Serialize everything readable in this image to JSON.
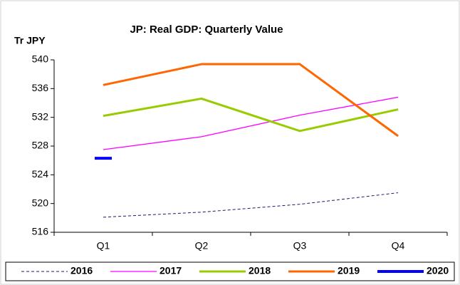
{
  "chart_data": {
    "type": "line",
    "title": "JP: Real GDP: Quarterly Value",
    "y_label": "Tr JPY",
    "categories": [
      "Q1",
      "Q2",
      "Q3",
      "Q4"
    ],
    "series": [
      {
        "name": "2016",
        "color": "#1a1a6e",
        "width": 1,
        "dash": true,
        "values": [
          518.1,
          518.8,
          519.9,
          521.5
        ]
      },
      {
        "name": "2017",
        "color": "#ff00ff",
        "width": 1.3,
        "dash": false,
        "values": [
          527.5,
          529.3,
          532.3,
          534.8
        ]
      },
      {
        "name": "2018",
        "color": "#99cc00",
        "width": 3,
        "dash": false,
        "values": [
          532.2,
          534.6,
          530.1,
          533.1
        ]
      },
      {
        "name": "2019",
        "color": "#ff6600",
        "width": 3,
        "dash": false,
        "values": [
          536.5,
          539.4,
          539.4,
          529.4
        ]
      },
      {
        "name": "2020",
        "color": "#0000ff",
        "width": 4,
        "dash": false,
        "values": [
          526.3,
          null,
          null,
          null
        ]
      }
    ],
    "ylim": [
      516,
      540
    ],
    "yticks": [
      516,
      520,
      524,
      528,
      532,
      536,
      540
    ],
    "grid": false,
    "legend": "bottom"
  }
}
